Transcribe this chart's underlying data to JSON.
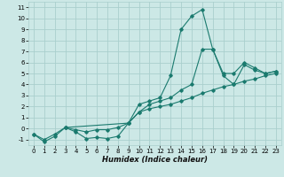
{
  "title": "",
  "xlabel": "Humidex (Indice chaleur)",
  "ylabel": "",
  "bg_color": "#cce8e6",
  "grid_color": "#aacfcd",
  "line_color": "#1a7a6e",
  "xlim": [
    -0.5,
    23.5
  ],
  "ylim": [
    -1.5,
    11.5
  ],
  "xticks": [
    0,
    1,
    2,
    3,
    4,
    5,
    6,
    7,
    8,
    9,
    10,
    11,
    12,
    13,
    14,
    15,
    16,
    17,
    18,
    19,
    20,
    21,
    22,
    23
  ],
  "yticks": [
    -1,
    0,
    1,
    2,
    3,
    4,
    5,
    6,
    7,
    8,
    9,
    10,
    11
  ],
  "line1_x": [
    0,
    1,
    2,
    3,
    4,
    5,
    6,
    7,
    8,
    9,
    10,
    11,
    12,
    13,
    14,
    15,
    16,
    17,
    18,
    19,
    20,
    21,
    22,
    23
  ],
  "line1_y": [
    -0.5,
    -1.2,
    -0.7,
    0.1,
    -0.3,
    -0.9,
    -0.8,
    -0.9,
    -0.7,
    0.5,
    2.2,
    2.5,
    2.8,
    4.8,
    9.0,
    10.2,
    10.8,
    7.2,
    4.8,
    4.0,
    5.8,
    5.3,
    5.0,
    5.2
  ],
  "line2_x": [
    0,
    1,
    2,
    3,
    4,
    5,
    6,
    7,
    8,
    9,
    10,
    11,
    12,
    13,
    14,
    15,
    16,
    17,
    18,
    19,
    20,
    21,
    22,
    23
  ],
  "line2_y": [
    -0.5,
    -1.0,
    -0.5,
    0.1,
    -0.1,
    -0.3,
    -0.1,
    -0.1,
    0.1,
    0.5,
    1.5,
    1.8,
    2.0,
    2.2,
    2.5,
    2.8,
    3.2,
    3.5,
    3.8,
    4.0,
    4.3,
    4.5,
    4.8,
    5.0
  ],
  "line3_x": [
    3,
    9,
    10,
    11,
    12,
    13,
    14,
    15,
    16,
    17,
    18,
    19,
    20,
    21,
    22,
    23
  ],
  "line3_y": [
    0.1,
    0.5,
    1.5,
    2.2,
    2.5,
    2.8,
    3.5,
    4.0,
    7.2,
    7.2,
    5.0,
    5.0,
    6.0,
    5.5,
    5.0,
    5.2
  ]
}
